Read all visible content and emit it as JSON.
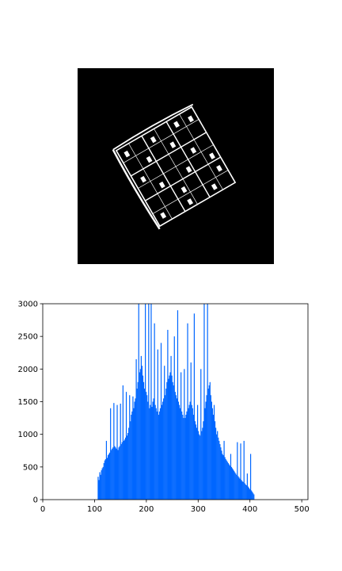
{
  "image_panel": {
    "content": "binarized rotated sudoku grid",
    "background_color": "#000000",
    "foreground_color": "#ffffff"
  },
  "chart_data": {
    "type": "bar",
    "title": "",
    "xlabel": "",
    "ylabel": "",
    "xlim": [
      0,
      512
    ],
    "ylim": [
      0,
      3000
    ],
    "xticks": [
      0,
      100,
      200,
      300,
      400,
      500
    ],
    "yticks": [
      0,
      500,
      1000,
      1500,
      2000,
      2500,
      3000
    ],
    "bar_color": "#0066ff",
    "grid": false,
    "legend": "none",
    "bin_start": 106,
    "values": [
      350,
      300,
      420,
      380,
      450,
      480,
      500,
      560,
      600,
      620,
      900,
      640,
      680,
      700,
      720,
      1400,
      760,
      780,
      800,
      1480,
      820,
      800,
      780,
      1450,
      760,
      800,
      820,
      1470,
      850,
      880,
      1750,
      900,
      920,
      950,
      1650,
      980,
      1020,
      1100,
      1600,
      1200,
      1300,
      1350,
      1580,
      1400,
      1500,
      1550,
      2150,
      1700,
      1800,
      3000,
      1950,
      2000,
      2200,
      2050,
      1900,
      1800,
      1700,
      3000,
      1650,
      1600,
      1500,
      3000,
      1400,
      1450,
      3000,
      1420,
      1500,
      1550,
      2700,
      1450,
      1400,
      1350,
      2300,
      1300,
      1350,
      1400,
      2400,
      1450,
      1500,
      1550,
      2050,
      1600,
      1700,
      1800,
      2600,
      1850,
      1900,
      1950,
      2200,
      1900,
      1800,
      1750,
      2500,
      1650,
      1600,
      1550,
      2900,
      1500,
      1450,
      1400,
      1950,
      1350,
      1300,
      1250,
      2000,
      1250,
      1300,
      1350,
      2700,
      1400,
      1450,
      1500,
      2100,
      1450,
      1400,
      1300,
      2850,
      1200,
      1150,
      1100,
      1450,
      1050,
      1000,
      980,
      2000,
      1050,
      1100,
      1200,
      3000,
      1400,
      1500,
      1600,
      3000,
      1700,
      1750,
      1800,
      1600,
      1500,
      1400,
      1300,
      1450,
      1200,
      1100,
      1000,
      1050,
      950,
      900,
      850,
      800,
      750,
      700,
      680,
      900,
      650,
      620,
      600,
      580,
      560,
      540,
      520,
      700,
      500,
      480,
      460,
      440,
      420,
      400,
      380,
      880,
      360,
      340,
      320,
      860,
      300,
      280,
      270,
      900,
      250,
      230,
      220,
      400,
      200,
      180,
      160,
      700,
      140,
      120,
      100,
      80
    ]
  }
}
